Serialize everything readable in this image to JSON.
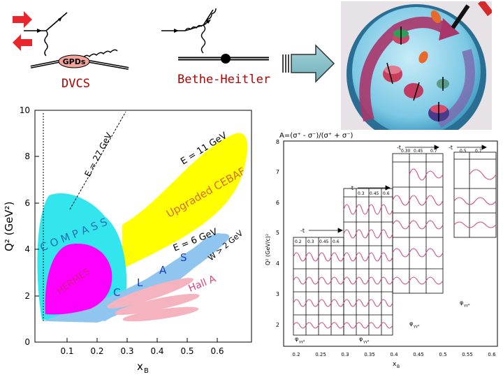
{
  "feynman": {
    "gpds_label": "GPDs",
    "dvcs_label": "DVCS",
    "bh_label": "Bethe-Heitler"
  },
  "kinematics_plot": {
    "y_ticks": [
      "0",
      "2",
      "4",
      "6",
      "8",
      "10"
    ],
    "x_ticks": [
      "0.1",
      "0.2",
      "0.3",
      "0.4",
      "0.5",
      "0.6"
    ],
    "y_axis_label": "Q² (GeV²)",
    "x_axis_label": "x",
    "x_axis_sub": "B",
    "labels": {
      "compass": "C O M P A S S",
      "hermes": "HERMES",
      "clas": [
        "C",
        "L",
        "A",
        "S"
      ],
      "hall_a": "Hall A",
      "cebaf": "Upgraded CEBAF",
      "e27": "E = 27 GeV",
      "e11": "E = 11 GeV",
      "e6": "E = 6 GeV",
      "w2": "W > 2 GeV"
    }
  },
  "asym_plot": {
    "title": "A=(σ⁺ - σ⁻)/(σ⁺ + σ⁻)",
    "y_axis_label": "Q² (GeV/c)²",
    "x_axis_label": "x",
    "x_axis_sub": "B",
    "y_ticks": [
      "2",
      "3",
      "4",
      "5",
      "6",
      "7",
      "8"
    ],
    "x_ticks": [
      "0.2",
      "0.25",
      "0.3",
      "0.35",
      "0.4",
      "0.45",
      "0.5",
      "0.55",
      "0.6",
      "0.65",
      "0.7"
    ],
    "t_label": "-t",
    "t_values_a": [
      "0.2",
      "0.3",
      "0.45",
      "0.6"
    ],
    "t_values_b": [
      "0.3",
      "0.45",
      "0.6"
    ],
    "t_values_c": [
      "0.30",
      "0.45",
      "0.7"
    ],
    "t_values_d": [
      "0.5",
      "0.7"
    ],
    "phi_label": "φ",
    "phi_sub": "γγ*"
  }
}
